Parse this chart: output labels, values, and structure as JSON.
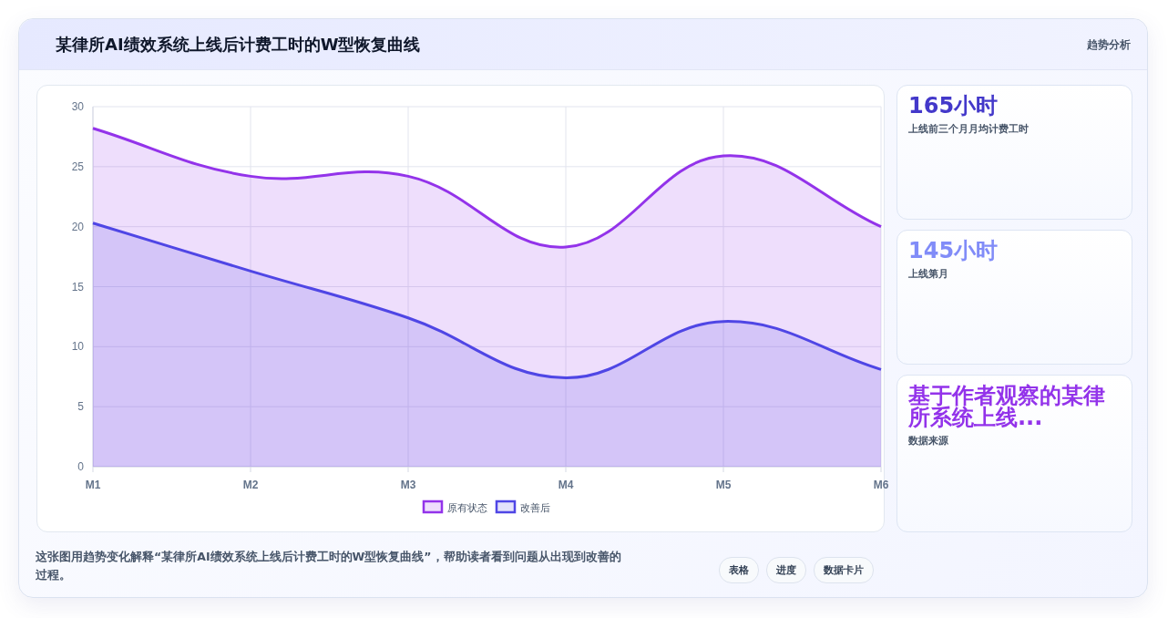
{
  "chart_data": [
    {
      "type": "area",
      "title": "某律所AI绩效系统上线后计费工时的W型恢复曲线",
      "categories": [
        "M1",
        "M2",
        "M3",
        "M4",
        "M5",
        "M6"
      ],
      "series": [
        {
          "name": "原有状态",
          "color": "#9333ea",
          "values": [
            28.2,
            24.2,
            24.2,
            18.3,
            25.9,
            20.0
          ]
        },
        {
          "name": "改善后",
          "color": "#4f46e5",
          "values": [
            20.3,
            16.3,
            12.4,
            7.4,
            12.1,
            8.1
          ]
        }
      ],
      "ylim": [
        0,
        30
      ],
      "yticks": [
        0,
        5,
        10,
        15,
        20,
        25,
        30
      ],
      "grid": true,
      "legend": "bottom",
      "annotations": [
        "趋势分析",
        "这张图用趋势变化解释“某律所AI绩效系统上线后计费工时的W型恢复曲线”，帮助读者看到问题从出现到改善的过程。",
        "表格",
        "进度",
        "数据卡片"
      ]
    },
    {
      "type": "other",
      "title": "165小时",
      "subtitle": "上线前三个月月均计费工时"
    },
    {
      "type": "other",
      "title": "145小时",
      "subtitle": "上线第月"
    },
    {
      "type": "other",
      "title": "基于作者观察的某律所系统上线...",
      "subtitle": "数据来源"
    }
  ]
}
